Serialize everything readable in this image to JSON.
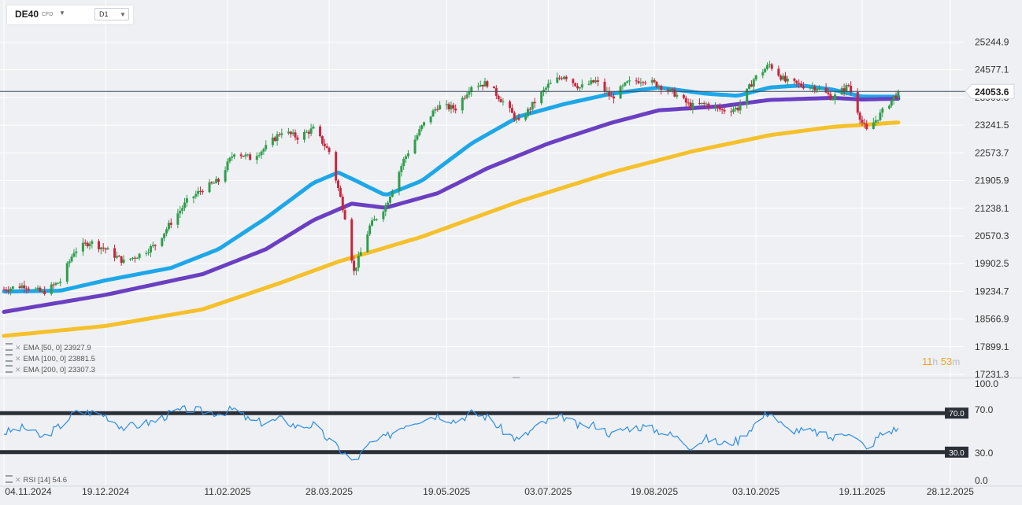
{
  "header": {
    "symbol": "DE40",
    "symbol_suffix": "CFD",
    "timeframe": "D1"
  },
  "price_axis_labels": [
    "25244.9",
    "24577.1",
    "23909.3",
    "23241.5",
    "22573.7",
    "21905.9",
    "21238.1",
    "20570.3",
    "19902.5",
    "19234.7",
    "18566.9",
    "17899.1",
    "17231.3"
  ],
  "current_price_label": "24053.6",
  "rsi_axis_labels": [
    "100.0",
    "70.0",
    "30.0",
    "0.0"
  ],
  "date_axis_labels": [
    "04.11.2024",
    "19.12.2024",
    "11.02.2025",
    "28.03.2025",
    "19.05.2025",
    "03.07.2025",
    "19.08.2025",
    "03.10.2025",
    "19.11.2025",
    "28.12.2025"
  ],
  "indicator_legend": [
    {
      "text": "EMA  [50,  0]  23927.9"
    },
    {
      "text": "EMA  [100,  0]  23881.5"
    },
    {
      "text": "EMA  [200,  0]  23307.3"
    }
  ],
  "rsi_legend": "RSI  [14]  54.6",
  "timer": {
    "h": "11",
    "h_unit": "h",
    "m": "53",
    "m_unit": "m"
  },
  "colors": {
    "up": "#2e9e4c",
    "down": "#c9253e",
    "ema50": "#1ea7e8",
    "ema100": "#6a3fc1",
    "ema200": "#f5c02a",
    "rsi": "#2f8de4",
    "rsi_band": "#2a2f38",
    "price_line": "#3b4a5a"
  },
  "chart_data": {
    "type": "line",
    "title": "DE40 CFD D1",
    "x_range": [
      "2024-11-04",
      "2025-12-05"
    ],
    "ylim": [
      17231.3,
      25244.9
    ],
    "last_price": 24053.6,
    "price_path": [
      [
        "2024-11-04",
        19280
      ],
      [
        "2024-11-13",
        19380
      ],
      [
        "2024-11-21",
        19200
      ],
      [
        "2024-11-29",
        19480
      ],
      [
        "2024-12-05",
        20200
      ],
      [
        "2024-12-12",
        20430
      ],
      [
        "2024-12-19",
        20250
      ],
      [
        "2024-12-27",
        19950
      ],
      [
        "2025-01-03",
        20120
      ],
      [
        "2025-01-10",
        20350
      ],
      [
        "2025-01-17",
        20900
      ],
      [
        "2025-01-24",
        21400
      ],
      [
        "2025-01-31",
        21700
      ],
      [
        "2025-02-07",
        21900
      ],
      [
        "2025-02-14",
        22600
      ],
      [
        "2025-02-21",
        22450
      ],
      [
        "2025-02-28",
        22700
      ],
      [
        "2025-03-07",
        23100
      ],
      [
        "2025-03-14",
        22950
      ],
      [
        "2025-03-21",
        23150
      ],
      [
        "2025-03-28",
        22600
      ],
      [
        "2025-04-04",
        21050
      ],
      [
        "2025-04-08",
        19700
      ],
      [
        "2025-04-15",
        20800
      ],
      [
        "2025-04-22",
        21300
      ],
      [
        "2025-04-30",
        22400
      ],
      [
        "2025-05-08",
        23200
      ],
      [
        "2025-05-15",
        23700
      ],
      [
        "2025-05-23",
        23650
      ],
      [
        "2025-05-30",
        24200
      ],
      [
        "2025-06-06",
        24250
      ],
      [
        "2025-06-13",
        23800
      ],
      [
        "2025-06-20",
        23300
      ],
      [
        "2025-06-27",
        23800
      ],
      [
        "2025-07-03",
        24200
      ],
      [
        "2025-07-10",
        24450
      ],
      [
        "2025-07-17",
        24150
      ],
      [
        "2025-07-24",
        24300
      ],
      [
        "2025-07-31",
        23900
      ],
      [
        "2025-08-07",
        24250
      ],
      [
        "2025-08-14",
        24350
      ],
      [
        "2025-08-21",
        24200
      ],
      [
        "2025-08-28",
        24000
      ],
      [
        "2025-09-04",
        23700
      ],
      [
        "2025-09-11",
        23750
      ],
      [
        "2025-09-18",
        23600
      ],
      [
        "2025-09-25",
        23650
      ],
      [
        "2025-10-02",
        24350
      ],
      [
        "2025-10-09",
        24700
      ],
      [
        "2025-10-16",
        24300
      ],
      [
        "2025-10-23",
        24200
      ],
      [
        "2025-10-30",
        24150
      ],
      [
        "2025-11-06",
        23900
      ],
      [
        "2025-11-13",
        24200
      ],
      [
        "2025-11-19",
        23300
      ],
      [
        "2025-11-21",
        23100
      ],
      [
        "2025-11-27",
        23500
      ],
      [
        "2025-12-05",
        24053.6
      ]
    ],
    "series": [
      {
        "name": "EMA [50, 0]",
        "color": "#1ea7e8",
        "last": 23927.9,
        "points": [
          [
            "2024-11-04",
            19230
          ],
          [
            "2024-11-29",
            19250
          ],
          [
            "2024-12-19",
            19500
          ],
          [
            "2025-01-17",
            19800
          ],
          [
            "2025-02-07",
            20250
          ],
          [
            "2025-02-28",
            21000
          ],
          [
            "2025-03-21",
            21850
          ],
          [
            "2025-04-01",
            22100
          ],
          [
            "2025-04-07",
            21950
          ],
          [
            "2025-04-22",
            21550
          ],
          [
            "2025-05-08",
            21900
          ],
          [
            "2025-05-30",
            22800
          ],
          [
            "2025-06-20",
            23450
          ],
          [
            "2025-07-10",
            23750
          ],
          [
            "2025-07-31",
            24000
          ],
          [
            "2025-08-21",
            24150
          ],
          [
            "2025-09-11",
            24000
          ],
          [
            "2025-09-25",
            23950
          ],
          [
            "2025-10-09",
            24150
          ],
          [
            "2025-10-23",
            24200
          ],
          [
            "2025-11-06",
            24100
          ],
          [
            "2025-11-19",
            23930
          ],
          [
            "2025-12-05",
            23927.9
          ]
        ]
      },
      {
        "name": "EMA [100, 0]",
        "color": "#6a3fc1",
        "last": 23881.5,
        "points": [
          [
            "2024-11-04",
            18740
          ],
          [
            "2024-12-19",
            19150
          ],
          [
            "2025-01-31",
            19650
          ],
          [
            "2025-02-28",
            20250
          ],
          [
            "2025-03-21",
            20950
          ],
          [
            "2025-04-07",
            21350
          ],
          [
            "2025-04-22",
            21250
          ],
          [
            "2025-05-15",
            21600
          ],
          [
            "2025-06-06",
            22200
          ],
          [
            "2025-07-03",
            22800
          ],
          [
            "2025-07-31",
            23300
          ],
          [
            "2025-08-21",
            23600
          ],
          [
            "2025-09-18",
            23700
          ],
          [
            "2025-10-09",
            23850
          ],
          [
            "2025-11-06",
            23900
          ],
          [
            "2025-11-19",
            23860
          ],
          [
            "2025-12-05",
            23881.5
          ]
        ]
      },
      {
        "name": "EMA [200, 0]",
        "color": "#f5c02a",
        "last": 23307.3,
        "points": [
          [
            "2024-11-04",
            18160
          ],
          [
            "2024-12-19",
            18400
          ],
          [
            "2025-01-31",
            18800
          ],
          [
            "2025-03-07",
            19450
          ],
          [
            "2025-04-01",
            19950
          ],
          [
            "2025-05-08",
            20550
          ],
          [
            "2025-06-20",
            21400
          ],
          [
            "2025-07-31",
            22100
          ],
          [
            "2025-09-04",
            22600
          ],
          [
            "2025-10-09",
            23000
          ],
          [
            "2025-11-06",
            23200
          ],
          [
            "2025-12-05",
            23307.3
          ]
        ]
      }
    ],
    "rsi": {
      "name": "RSI [14]",
      "period": 14,
      "last": 54.6,
      "ylim": [
        0,
        100
      ],
      "levels": [
        70,
        30
      ],
      "points": [
        [
          "2024-11-04",
          50
        ],
        [
          "2024-11-13",
          55
        ],
        [
          "2024-11-21",
          45
        ],
        [
          "2024-11-29",
          57
        ],
        [
          "2024-12-05",
          70
        ],
        [
          "2024-12-12",
          71
        ],
        [
          "2024-12-19",
          68
        ],
        [
          "2024-12-27",
          55
        ],
        [
          "2025-01-03",
          58
        ],
        [
          "2025-01-10",
          62
        ],
        [
          "2025-01-17",
          70
        ],
        [
          "2025-01-24",
          74
        ],
        [
          "2025-01-31",
          72
        ],
        [
          "2025-02-07",
          70
        ],
        [
          "2025-02-14",
          74
        ],
        [
          "2025-02-21",
          62
        ],
        [
          "2025-02-28",
          60
        ],
        [
          "2025-03-07",
          64
        ],
        [
          "2025-03-14",
          56
        ],
        [
          "2025-03-21",
          58
        ],
        [
          "2025-03-28",
          42
        ],
        [
          "2025-04-04",
          28
        ],
        [
          "2025-04-08",
          20
        ],
        [
          "2025-04-15",
          38
        ],
        [
          "2025-04-22",
          45
        ],
        [
          "2025-04-30",
          58
        ],
        [
          "2025-05-08",
          64
        ],
        [
          "2025-05-15",
          68
        ],
        [
          "2025-05-23",
          62
        ],
        [
          "2025-05-30",
          70
        ],
        [
          "2025-06-06",
          66
        ],
        [
          "2025-06-13",
          52
        ],
        [
          "2025-06-20",
          42
        ],
        [
          "2025-06-27",
          55
        ],
        [
          "2025-07-03",
          62
        ],
        [
          "2025-07-10",
          66
        ],
        [
          "2025-07-17",
          56
        ],
        [
          "2025-07-24",
          58
        ],
        [
          "2025-07-31",
          48
        ],
        [
          "2025-08-07",
          55
        ],
        [
          "2025-08-14",
          56
        ],
        [
          "2025-08-21",
          52
        ],
        [
          "2025-08-28",
          46
        ],
        [
          "2025-09-04",
          36
        ],
        [
          "2025-09-11",
          44
        ],
        [
          "2025-09-18",
          38
        ],
        [
          "2025-09-25",
          42
        ],
        [
          "2025-10-02",
          58
        ],
        [
          "2025-10-09",
          72
        ],
        [
          "2025-10-16",
          54
        ],
        [
          "2025-10-23",
          52
        ],
        [
          "2025-10-30",
          50
        ],
        [
          "2025-11-06",
          44
        ],
        [
          "2025-11-13",
          52
        ],
        [
          "2025-11-19",
          38
        ],
        [
          "2025-11-21",
          32
        ],
        [
          "2025-11-27",
          48
        ],
        [
          "2025-12-05",
          54.6
        ]
      ]
    }
  }
}
